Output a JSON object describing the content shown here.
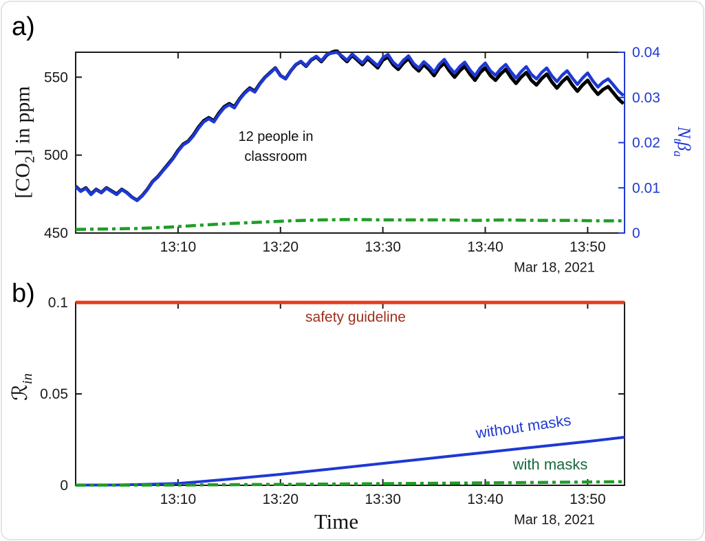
{
  "figure": {
    "panel_a_letter": "a)",
    "panel_b_letter": "b)"
  },
  "labels": {
    "co2_pre": "[CO",
    "co2_sub": "2",
    "co2_post": "] in ppm",
    "ntba_n": "N",
    "ntba_t": "t",
    "ntba_beta": "β",
    "ntba_a": "a",
    "rin_r": "ℛ",
    "rin_sub": "in",
    "time": "Time",
    "date_a": "Mar 18, 2021",
    "date_b": "Mar 18, 2021",
    "annotation_line1": "12 people in",
    "annotation_line2": "classroom",
    "safety": "safety guideline",
    "without": "without masks",
    "with": "with masks"
  },
  "colors": {
    "blue": "#1e38d4",
    "green": "#1f9d26",
    "red": "#e63a1c",
    "dark_red_text": "#9e2e1c",
    "dark_green_text": "#17693c",
    "axis": "#1a1a1a",
    "black": "#000000"
  },
  "chart_data": [
    {
      "id": "panel-a",
      "type": "line",
      "x_axis": {
        "unit": "time of day (minutes after 13:00)",
        "range": [
          0,
          53.6
        ],
        "ticks": [
          10,
          20,
          30,
          40,
          50
        ],
        "tick_labels": [
          "13:10",
          "13:20",
          "13:30",
          "13:40",
          "13:50"
        ],
        "date": "Mar 18, 2021",
        "grid": false
      },
      "y_left": {
        "label": "[CO2] in ppm",
        "range": [
          450,
          566
        ],
        "ticks": [
          450,
          500,
          550
        ],
        "tick_labels": [
          "450",
          "500",
          "550"
        ],
        "color": "#1a1a1a"
      },
      "y_right": {
        "label": "Nt·βa",
        "range": [
          0,
          0.04
        ],
        "ticks": [
          0,
          0.01,
          0.02,
          0.03,
          0.04
        ],
        "tick_labels": [
          "0",
          "0.01",
          "0.02",
          "0.03",
          "0.04"
        ],
        "color": "#1e38d4"
      },
      "annotation": "12 people in classroom",
      "series": [
        {
          "name": "co2-measured",
          "axis": "left",
          "color": "#000000",
          "width": 5,
          "style": "solid",
          "x_start": 0,
          "x_step": 0.5,
          "y": [
            480,
            477,
            479,
            475,
            478,
            476,
            479,
            477,
            475,
            478,
            476,
            473,
            471,
            474,
            478,
            483,
            486,
            490,
            494,
            498,
            503,
            507,
            509,
            513,
            518,
            522,
            524,
            522,
            527,
            531,
            533,
            531,
            536,
            540,
            543,
            541,
            546,
            550,
            553,
            556,
            551,
            549,
            554,
            558,
            560,
            557,
            561,
            563,
            560,
            564,
            566,
            567,
            563,
            560,
            564,
            561,
            558,
            562,
            559,
            556,
            561,
            563,
            558,
            555,
            559,
            562,
            557,
            554,
            558,
            555,
            551,
            556,
            559,
            554,
            550,
            554,
            557,
            552,
            548,
            553,
            556,
            551,
            548,
            552,
            555,
            550,
            546,
            550,
            553,
            548,
            545,
            549,
            552,
            547,
            543,
            547,
            550,
            545,
            541,
            545,
            548,
            543,
            539,
            542,
            544,
            540,
            536,
            533
          ]
        },
        {
          "name": "nt-beta-a",
          "axis": "right",
          "color": "#1e38d4",
          "width": 4.5,
          "style": "solid",
          "x_start": 0,
          "x_step": 0.5,
          "y": [
            0.0103,
            0.0092,
            0.0099,
            0.0085,
            0.0096,
            0.0089,
            0.0099,
            0.0092,
            0.0085,
            0.0096,
            0.0089,
            0.0079,
            0.0072,
            0.0082,
            0.0096,
            0.0113,
            0.0123,
            0.0137,
            0.015,
            0.0164,
            0.0181,
            0.0195,
            0.0202,
            0.0215,
            0.0232,
            0.0246,
            0.0253,
            0.0246,
            0.0263,
            0.0277,
            0.0284,
            0.0277,
            0.0295,
            0.0309,
            0.0319,
            0.0312,
            0.033,
            0.0344,
            0.0354,
            0.0365,
            0.0348,
            0.0341,
            0.0359,
            0.0373,
            0.038,
            0.037,
            0.0384,
            0.0391,
            0.0381,
            0.0395,
            0.0398,
            0.04,
            0.0392,
            0.0382,
            0.0396,
            0.0386,
            0.0376,
            0.039,
            0.038,
            0.037,
            0.0388,
            0.0395,
            0.0378,
            0.0368,
            0.0382,
            0.0392,
            0.0375,
            0.0365,
            0.0379,
            0.0369,
            0.0356,
            0.0373,
            0.0384,
            0.0367,
            0.0354,
            0.0368,
            0.0378,
            0.0361,
            0.0348,
            0.0365,
            0.0376,
            0.0359,
            0.0349,
            0.0363,
            0.0373,
            0.0357,
            0.0343,
            0.0357,
            0.0368,
            0.0351,
            0.0341,
            0.0355,
            0.0365,
            0.0348,
            0.0335,
            0.0349,
            0.0359,
            0.0343,
            0.0329,
            0.0343,
            0.0354,
            0.0337,
            0.0323,
            0.0334,
            0.0341,
            0.0328,
            0.0314,
            0.0304
          ]
        },
        {
          "name": "nt-beta-a-with-masks",
          "axis": "right",
          "color": "#1f9d26",
          "width": 4.5,
          "style": "dashdot",
          "x": [
            0,
            3,
            6,
            9,
            12,
            15,
            18,
            21,
            24,
            27,
            30,
            33,
            36,
            39,
            42,
            45,
            48,
            51,
            53.5
          ],
          "y": [
            0.0008,
            0.0009,
            0.001,
            0.0013,
            0.0017,
            0.0021,
            0.0024,
            0.0027,
            0.0029,
            0.003,
            0.0029,
            0.0029,
            0.0029,
            0.0028,
            0.0029,
            0.0028,
            0.0028,
            0.0027,
            0.0027
          ]
        }
      ]
    },
    {
      "id": "panel-b",
      "type": "line",
      "x_axis": {
        "label": "Time",
        "unit": "time of day (minutes after 13:00)",
        "range": [
          0,
          53.6
        ],
        "ticks": [
          10,
          20,
          30,
          40,
          50
        ],
        "tick_labels": [
          "13:10",
          "13:20",
          "13:30",
          "13:40",
          "13:50"
        ],
        "date": "Mar 18, 2021",
        "grid": false
      },
      "y_left": {
        "label": "R_in",
        "range": [
          0,
          0.1
        ],
        "ticks": [
          0,
          0.05,
          0.1
        ],
        "tick_labels": [
          "0",
          "0.05",
          "0.1"
        ],
        "color": "#1a1a1a"
      },
      "annotations": [
        "safety guideline",
        "without masks",
        "with masks"
      ],
      "series": [
        {
          "name": "safety-guideline",
          "axis": "left",
          "color": "#e63a1c",
          "width": 5,
          "style": "solid",
          "x": [
            0,
            53.6
          ],
          "y": [
            0.1,
            0.1
          ]
        },
        {
          "name": "without-masks",
          "axis": "left",
          "color": "#1e38d4",
          "width": 4,
          "style": "solid",
          "x": [
            0,
            4,
            6,
            8,
            10,
            12,
            15,
            20,
            25,
            30,
            35,
            40,
            45,
            50,
            53.6
          ],
          "y": [
            0.0001,
            0.0002,
            0.0004,
            0.0007,
            0.001,
            0.0019,
            0.0034,
            0.006,
            0.009,
            0.012,
            0.015,
            0.018,
            0.021,
            0.024,
            0.0263
          ]
        },
        {
          "name": "with-masks",
          "axis": "left",
          "color": "#1f9d26",
          "width": 4.5,
          "style": "dashdot",
          "x": [
            0,
            10,
            20,
            30,
            40,
            50,
            53.6
          ],
          "y": [
            0.0001,
            0.0002,
            0.0005,
            0.0009,
            0.0013,
            0.0018,
            0.002
          ]
        }
      ]
    }
  ]
}
